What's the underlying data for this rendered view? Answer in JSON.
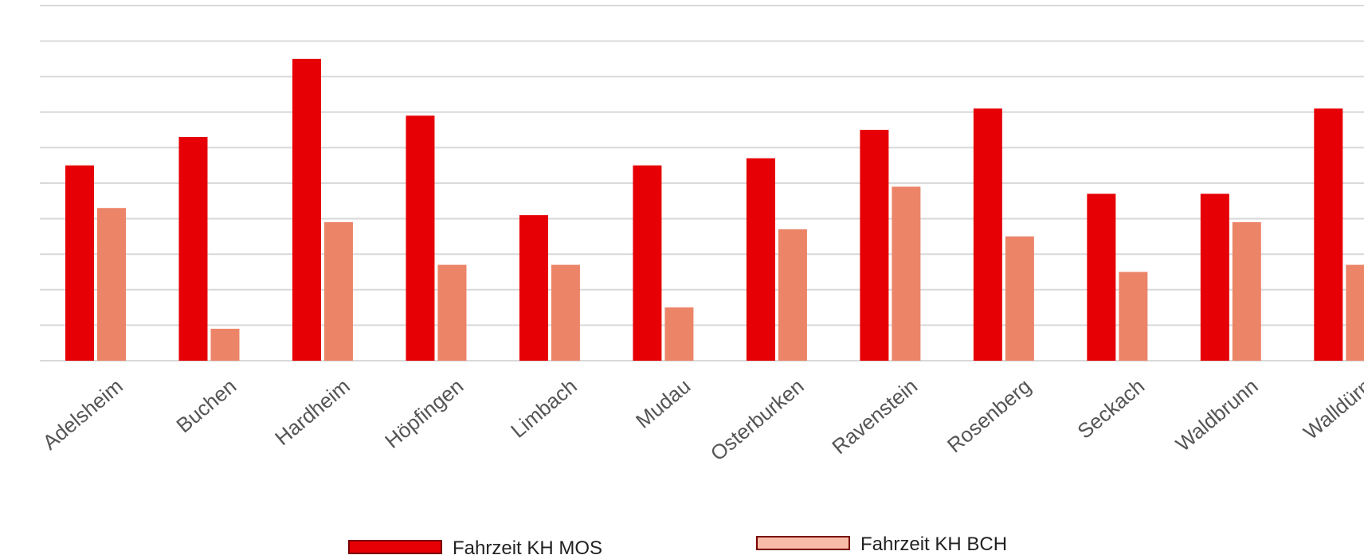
{
  "chart_data": {
    "type": "bar",
    "categories": [
      "Adelsheim",
      "Buchen",
      "Hardheim",
      "Höpfingen",
      "Limbach",
      "Mudau",
      "Osterburken",
      "Ravenstein",
      "Rosenberg",
      "Seckach",
      "Waldbrunn",
      "Walldürn"
    ],
    "series": [
      {
        "name": "Fahrzeit KH MOS",
        "values": [
          27.5,
          31.5,
          42.5,
          34.5,
          20.5,
          27.5,
          28.5,
          32.5,
          35.5,
          23.5,
          23.5,
          35.5
        ],
        "color": "#e60005"
      },
      {
        "name": "Fahrzeit KH BCH",
        "values": [
          21.5,
          4.5,
          19.5,
          13.5,
          13.5,
          7.5,
          18.5,
          24.5,
          17.5,
          12.5,
          19.5,
          13.5
        ],
        "color": "#ec8468"
      }
    ],
    "ylim": [
      0,
      50
    ],
    "grid": true,
    "legend_position": "bottom",
    "legend_swatch_colors": [
      "#e60005",
      "#f7bca8"
    ],
    "legend_border_color": "#7a0000"
  }
}
